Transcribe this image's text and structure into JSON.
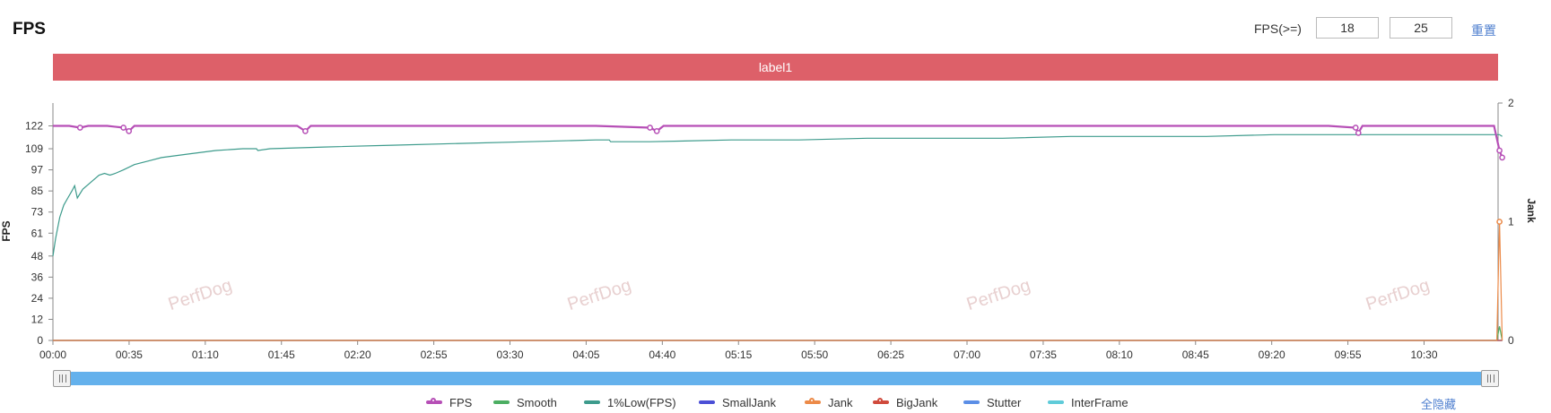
{
  "header": {
    "title": "FPS",
    "threshold_label": "FPS(>=)",
    "threshold_low": "18",
    "threshold_high": "25",
    "reset_label": "重置"
  },
  "label_bar": {
    "text": "label1",
    "color": "#dd6069"
  },
  "chart_data": {
    "type": "line",
    "ylabel": "FPS",
    "y2label": "Jank",
    "y_ticks": [
      0,
      12,
      24,
      36,
      48,
      61,
      73,
      85,
      97,
      109,
      122
    ],
    "y2_ticks": [
      0,
      1,
      2
    ],
    "ylim": [
      0,
      135
    ],
    "y2lim": [
      0,
      2
    ],
    "x_ticks": [
      "00:00",
      "00:35",
      "01:10",
      "01:45",
      "02:20",
      "02:55",
      "03:30",
      "04:05",
      "04:40",
      "05:15",
      "05:50",
      "06:25",
      "07:00",
      "07:35",
      "08:10",
      "08:45",
      "09:20",
      "09:55",
      "10:30"
    ],
    "x_range_seconds": [
      0,
      664
    ],
    "watermark": "PerfDog",
    "grid": false,
    "legend_position": "bottom",
    "series": [
      {
        "name": "FPS",
        "color": "#b64fb6",
        "axis": "left",
        "marker": true,
        "points": [
          [
            0,
            122
          ],
          [
            12,
            122
          ],
          [
            20,
            121
          ],
          [
            26,
            122
          ],
          [
            40,
            122
          ],
          [
            52,
            121
          ],
          [
            56,
            119
          ],
          [
            60,
            122
          ],
          [
            100,
            122
          ],
          [
            140,
            122
          ],
          [
            150,
            122
          ],
          [
            180,
            122
          ],
          [
            186,
            119
          ],
          [
            190,
            122
          ],
          [
            220,
            122
          ],
          [
            240,
            122
          ],
          [
            260,
            122
          ],
          [
            300,
            122
          ],
          [
            360,
            122
          ],
          [
            400,
            122
          ],
          [
            440,
            121
          ],
          [
            445,
            119
          ],
          [
            450,
            122
          ],
          [
            520,
            122
          ],
          [
            580,
            122
          ],
          [
            640,
            122
          ],
          [
            700,
            122
          ],
          [
            760,
            122
          ],
          [
            820,
            122
          ],
          [
            880,
            122
          ],
          [
            940,
            122
          ],
          [
            960,
            121
          ],
          [
            962,
            118
          ],
          [
            965,
            122
          ],
          [
            1000,
            122
          ],
          [
            1040,
            122
          ],
          [
            1062,
            122
          ],
          [
            1066,
            108
          ],
          [
            1068,
            104
          ]
        ]
      },
      {
        "name": "Smooth",
        "color": "#4cae62",
        "axis": "left",
        "marker": false,
        "points": [
          [
            0,
            0
          ],
          [
            1064,
            0
          ],
          [
            1066,
            8
          ],
          [
            1068,
            0
          ]
        ]
      },
      {
        "name": "1%Low(FPS)",
        "color": "#3d9b8c",
        "axis": "left",
        "marker": false,
        "points": [
          [
            0,
            48
          ],
          [
            2,
            58
          ],
          [
            5,
            70
          ],
          [
            8,
            77
          ],
          [
            11,
            81
          ],
          [
            14,
            85
          ],
          [
            16,
            88
          ],
          [
            18,
            81
          ],
          [
            22,
            86
          ],
          [
            28,
            90
          ],
          [
            34,
            94
          ],
          [
            38,
            95
          ],
          [
            42,
            94
          ],
          [
            46,
            95
          ],
          [
            52,
            97
          ],
          [
            60,
            100
          ],
          [
            70,
            102
          ],
          [
            80,
            104
          ],
          [
            100,
            106
          ],
          [
            120,
            108
          ],
          [
            140,
            109
          ],
          [
            150,
            109
          ],
          [
            151,
            108
          ],
          [
            160,
            109
          ],
          [
            200,
            110
          ],
          [
            250,
            111
          ],
          [
            300,
            112
          ],
          [
            350,
            113
          ],
          [
            400,
            114
          ],
          [
            410,
            114
          ],
          [
            411,
            113
          ],
          [
            440,
            113
          ],
          [
            500,
            114
          ],
          [
            550,
            114
          ],
          [
            600,
            115
          ],
          [
            650,
            115
          ],
          [
            700,
            115
          ],
          [
            750,
            116
          ],
          [
            800,
            116
          ],
          [
            850,
            116
          ],
          [
            900,
            117
          ],
          [
            950,
            117
          ],
          [
            1000,
            117
          ],
          [
            1066,
            117
          ],
          [
            1068,
            116
          ]
        ]
      },
      {
        "name": "SmallJank",
        "color": "#4b4fd6",
        "axis": "right",
        "marker": false,
        "points": [
          [
            0,
            0
          ],
          [
            1068,
            0
          ]
        ]
      },
      {
        "name": "Jank",
        "color": "#ec8a48",
        "axis": "right",
        "marker": true,
        "points": [
          [
            0,
            0
          ],
          [
            1064,
            0
          ],
          [
            1066,
            1
          ],
          [
            1068,
            0
          ]
        ]
      },
      {
        "name": "BigJank",
        "color": "#d04a3c",
        "axis": "right",
        "marker": true,
        "points": [
          [
            0,
            0
          ],
          [
            1068,
            0
          ]
        ]
      },
      {
        "name": "Stutter",
        "color": "#5b8ee6",
        "axis": "right",
        "marker": false,
        "points": [
          [
            0,
            0
          ],
          [
            1068,
            0
          ]
        ]
      },
      {
        "name": "InterFrame",
        "color": "#5fcbd9",
        "axis": "right",
        "marker": false,
        "points": [
          [
            0,
            0
          ],
          [
            1068,
            0
          ]
        ]
      }
    ]
  },
  "footer": {
    "hide_all_label": "全隐藏"
  }
}
